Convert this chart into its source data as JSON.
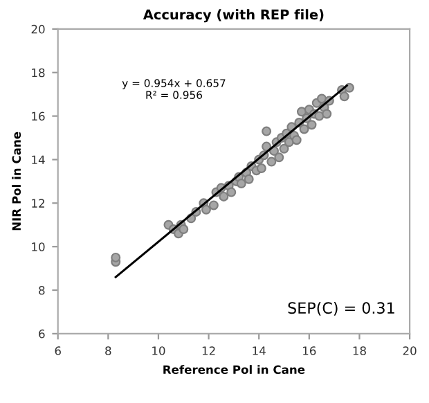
{
  "chart_data": {
    "type": "scatter",
    "title": "Accuracy (with REP file)",
    "xlabel": "Reference Pol in Cane",
    "ylabel": "NIR Pol in Cane",
    "xlim": [
      6,
      20
    ],
    "ylim": [
      6,
      20
    ],
    "xticks": [
      6,
      8,
      10,
      12,
      14,
      16,
      18,
      20
    ],
    "yticks": [
      6,
      8,
      10,
      12,
      14,
      16,
      18,
      20
    ],
    "grid": false,
    "legend": false,
    "annotations": [
      "y = 0.954x + 0.657\nR² = 0.956",
      "SEP(C) = 0.31"
    ],
    "series": [
      {
        "marker": "circle",
        "color": "#a6a6a6",
        "x": [
          8.3,
          8.3,
          10.4,
          10.6,
          10.8,
          10.9,
          11.0,
          11.3,
          11.5,
          11.8,
          11.9,
          12.2,
          12.3,
          12.5,
          12.6,
          12.8,
          12.9,
          13.1,
          13.2,
          13.3,
          13.5,
          13.6,
          13.7,
          13.9,
          14.0,
          14.1,
          14.2,
          14.3,
          14.3,
          14.5,
          14.6,
          14.7,
          14.8,
          14.9,
          15.0,
          15.1,
          15.2,
          15.3,
          15.4,
          15.5,
          15.6,
          15.7,
          15.8,
          15.9,
          16.0,
          16.1,
          16.2,
          16.3,
          16.4,
          16.5,
          16.6,
          16.7,
          16.8,
          17.3,
          17.4,
          17.6
        ],
        "values": [
          9.3,
          9.5,
          11.0,
          10.8,
          10.6,
          11.0,
          10.8,
          11.3,
          11.6,
          12.0,
          11.7,
          11.9,
          12.5,
          12.7,
          12.3,
          12.8,
          12.5,
          13.0,
          13.2,
          12.9,
          13.4,
          13.1,
          13.7,
          13.5,
          14.0,
          13.6,
          14.2,
          15.3,
          14.6,
          13.9,
          14.4,
          14.8,
          14.1,
          15.0,
          14.5,
          15.2,
          14.8,
          15.5,
          15.1,
          14.9,
          15.7,
          16.2,
          15.4,
          15.9,
          16.3,
          15.6,
          16.1,
          16.6,
          16.0,
          16.8,
          16.4,
          16.1,
          16.7,
          17.2,
          16.9,
          17.3
        ]
      },
      {
        "type": "line",
        "marker": "none",
        "color": "#000000",
        "x": [
          8.3,
          17.5
        ],
        "values": [
          8.6,
          17.4
        ]
      }
    ]
  }
}
